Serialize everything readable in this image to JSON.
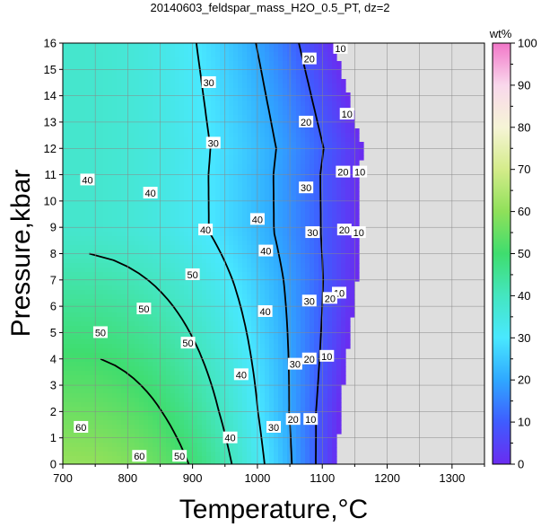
{
  "chart_data": {
    "type": "heatmap",
    "title": "20140603_feldspar_mass_H2O_0.5_PT, dz=2",
    "xlabel": "Temperature,°C",
    "ylabel": "Pressure,kbar",
    "xlim": [
      700,
      1350
    ],
    "ylim": [
      0,
      16
    ],
    "x_ticks": [
      700,
      800,
      900,
      1000,
      1100,
      1200,
      1300
    ],
    "y_ticks": [
      0,
      1,
      2,
      3,
      4,
      5,
      6,
      7,
      8,
      9,
      10,
      11,
      12,
      13,
      14,
      15,
      16
    ],
    "grid": true,
    "colorbar": {
      "label": "wt%",
      "range": [
        0,
        100
      ],
      "ticks": [
        0,
        10,
        20,
        30,
        40,
        50,
        60,
        70,
        80,
        90,
        100
      ]
    },
    "field_region_color": "#dedede",
    "contour_labels": [
      {
        "text": "10",
        "x": 1128,
        "y": 15.8
      },
      {
        "text": "10",
        "x": 1138,
        "y": 13.3
      },
      {
        "text": "10",
        "x": 1158,
        "y": 11.1
      },
      {
        "text": "10",
        "x": 1156,
        "y": 8.8
      },
      {
        "text": "10",
        "x": 1126,
        "y": 6.5
      },
      {
        "text": "10",
        "x": 1107,
        "y": 4.1
      },
      {
        "text": "10",
        "x": 1082,
        "y": 1.7
      },
      {
        "text": "20",
        "x": 1080,
        "y": 15.4
      },
      {
        "text": "20",
        "x": 1075,
        "y": 13.0
      },
      {
        "text": "20",
        "x": 1132,
        "y": 11.1
      },
      {
        "text": "20",
        "x": 1134,
        "y": 8.9
      },
      {
        "text": "20",
        "x": 1112,
        "y": 6.3
      },
      {
        "text": "20",
        "x": 1080,
        "y": 4.0
      },
      {
        "text": "20",
        "x": 1055,
        "y": 1.7
      },
      {
        "text": "30",
        "x": 925,
        "y": 14.5
      },
      {
        "text": "30",
        "x": 932,
        "y": 12.2
      },
      {
        "text": "30",
        "x": 1075,
        "y": 10.5
      },
      {
        "text": "30",
        "x": 1085,
        "y": 8.8
      },
      {
        "text": "30",
        "x": 1080,
        "y": 6.2
      },
      {
        "text": "30",
        "x": 1058,
        "y": 3.8
      },
      {
        "text": "30",
        "x": 1025,
        "y": 1.4
      },
      {
        "text": "40",
        "x": 738,
        "y": 10.8
      },
      {
        "text": "40",
        "x": 835,
        "y": 10.3
      },
      {
        "text": "40",
        "x": 920,
        "y": 8.9
      },
      {
        "text": "40",
        "x": 1000,
        "y": 9.3
      },
      {
        "text": "40",
        "x": 1013,
        "y": 8.1
      },
      {
        "text": "40",
        "x": 1012,
        "y": 5.8
      },
      {
        "text": "40",
        "x": 975,
        "y": 3.4
      },
      {
        "text": "40",
        "x": 958,
        "y": 1.0
      },
      {
        "text": "50",
        "x": 900,
        "y": 7.2
      },
      {
        "text": "50",
        "x": 825,
        "y": 5.9
      },
      {
        "text": "50",
        "x": 758,
        "y": 5.0
      },
      {
        "text": "50",
        "x": 893,
        "y": 4.6
      },
      {
        "text": "50",
        "x": 880,
        "y": 0.3
      },
      {
        "text": "60",
        "x": 728,
        "y": 1.4
      },
      {
        "text": "60",
        "x": 818,
        "y": 0.3
      }
    ]
  }
}
